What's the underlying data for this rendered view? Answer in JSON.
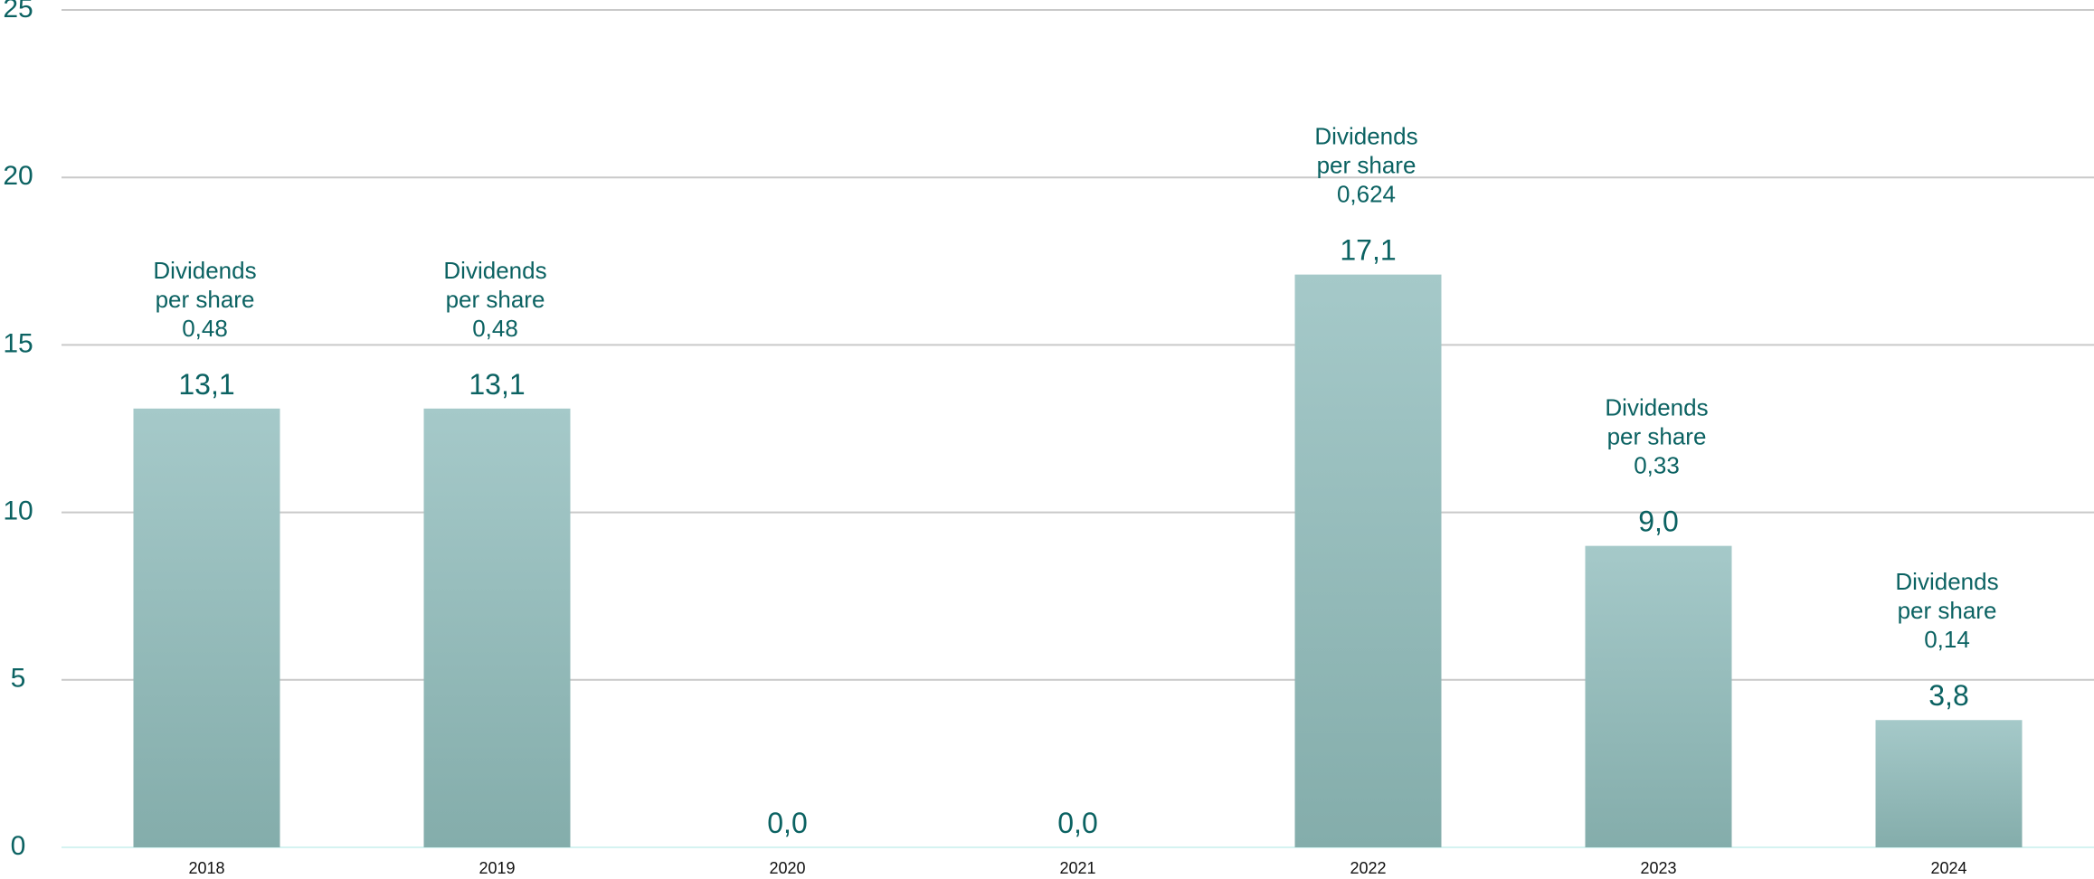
{
  "chart_data": {
    "type": "bar",
    "categories": [
      "2018",
      "2019",
      "2020",
      "2021",
      "2022",
      "2023",
      "2024"
    ],
    "values": [
      13.1,
      13.1,
      0.0,
      0.0,
      17.1,
      9.0,
      3.8
    ],
    "value_labels": [
      "13,1",
      "13,1",
      "0,0",
      "0,0",
      "17,1",
      "9,0",
      "3,8"
    ],
    "annotations": [
      {
        "category": "2018",
        "lines": [
          "Dividends",
          "per share",
          "0,48"
        ]
      },
      {
        "category": "2019",
        "lines": [
          "Dividends",
          "per share",
          "0,48"
        ]
      },
      {
        "category": "2022",
        "lines": [
          "Dividends",
          "per share",
          "0,624"
        ]
      },
      {
        "category": "2023",
        "lines": [
          "Dividends",
          "per share",
          "0,33"
        ]
      },
      {
        "category": "2024",
        "lines": [
          "Dividends",
          "per share",
          "0,14"
        ]
      }
    ],
    "yticks": [
      0,
      5,
      10,
      15,
      20,
      25
    ],
    "ylim": [
      0,
      25
    ],
    "grid": true,
    "legend": "none",
    "colors": {
      "bar_top": "#a5c9c9",
      "bar_bottom": "#84adab",
      "text": "#0b6262",
      "grid": "#c9c9c9",
      "axis_label": "#111111"
    }
  }
}
